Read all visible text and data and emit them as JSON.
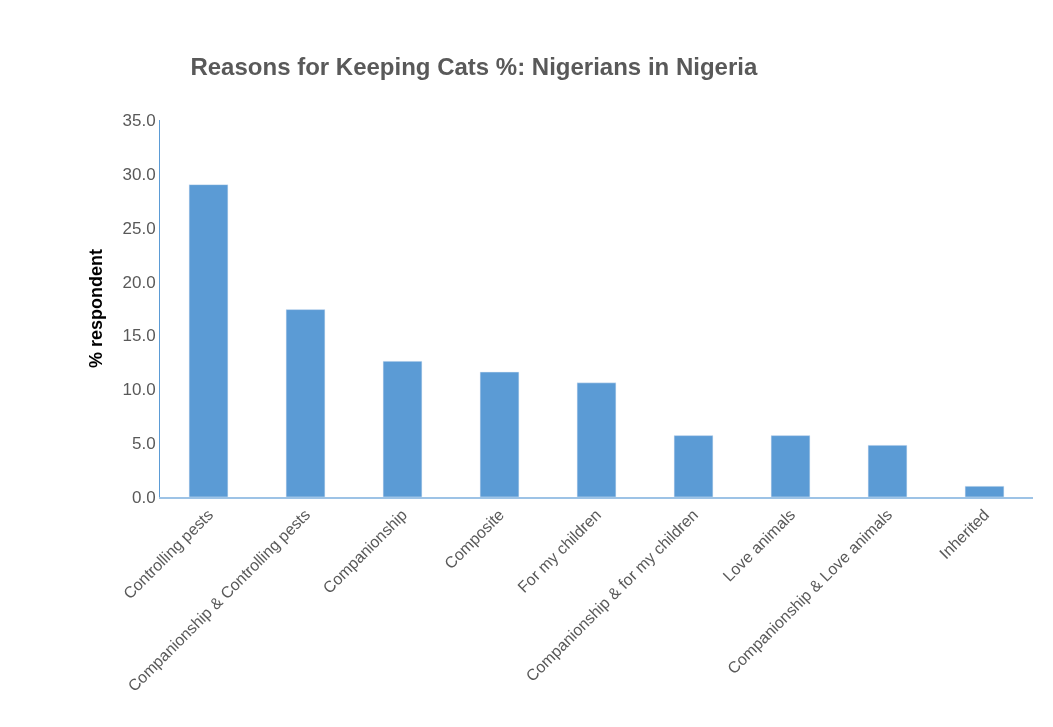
{
  "chart_data": {
    "type": "bar",
    "title": "Reasons for Keeping Cats %: Nigerians in Nigeria",
    "ylabel": "% respondent",
    "categories": [
      "Controlling pests",
      "Companionship & Controlling pests",
      "Companionship",
      "Composite",
      "For my children",
      "Companionship & for my children",
      "Love animals",
      "Companionship & Love animals",
      "Inherited"
    ],
    "values": [
      29.0,
      17.4,
      12.6,
      11.6,
      10.6,
      5.7,
      5.7,
      4.8,
      1.0
    ],
    "color": "#5b9bd5",
    "ylim": [
      0,
      35
    ],
    "yticks": [
      {
        "value": 0,
        "label": "0.0"
      },
      {
        "value": 5,
        "label": "5.0"
      },
      {
        "value": 10,
        "label": "10.0"
      },
      {
        "value": 15,
        "label": "15.0"
      },
      {
        "value": 20,
        "label": "20.0"
      },
      {
        "value": 25,
        "label": "25.0"
      },
      {
        "value": 30,
        "label": "30.0"
      },
      {
        "value": 35,
        "label": "35.0"
      }
    ]
  }
}
